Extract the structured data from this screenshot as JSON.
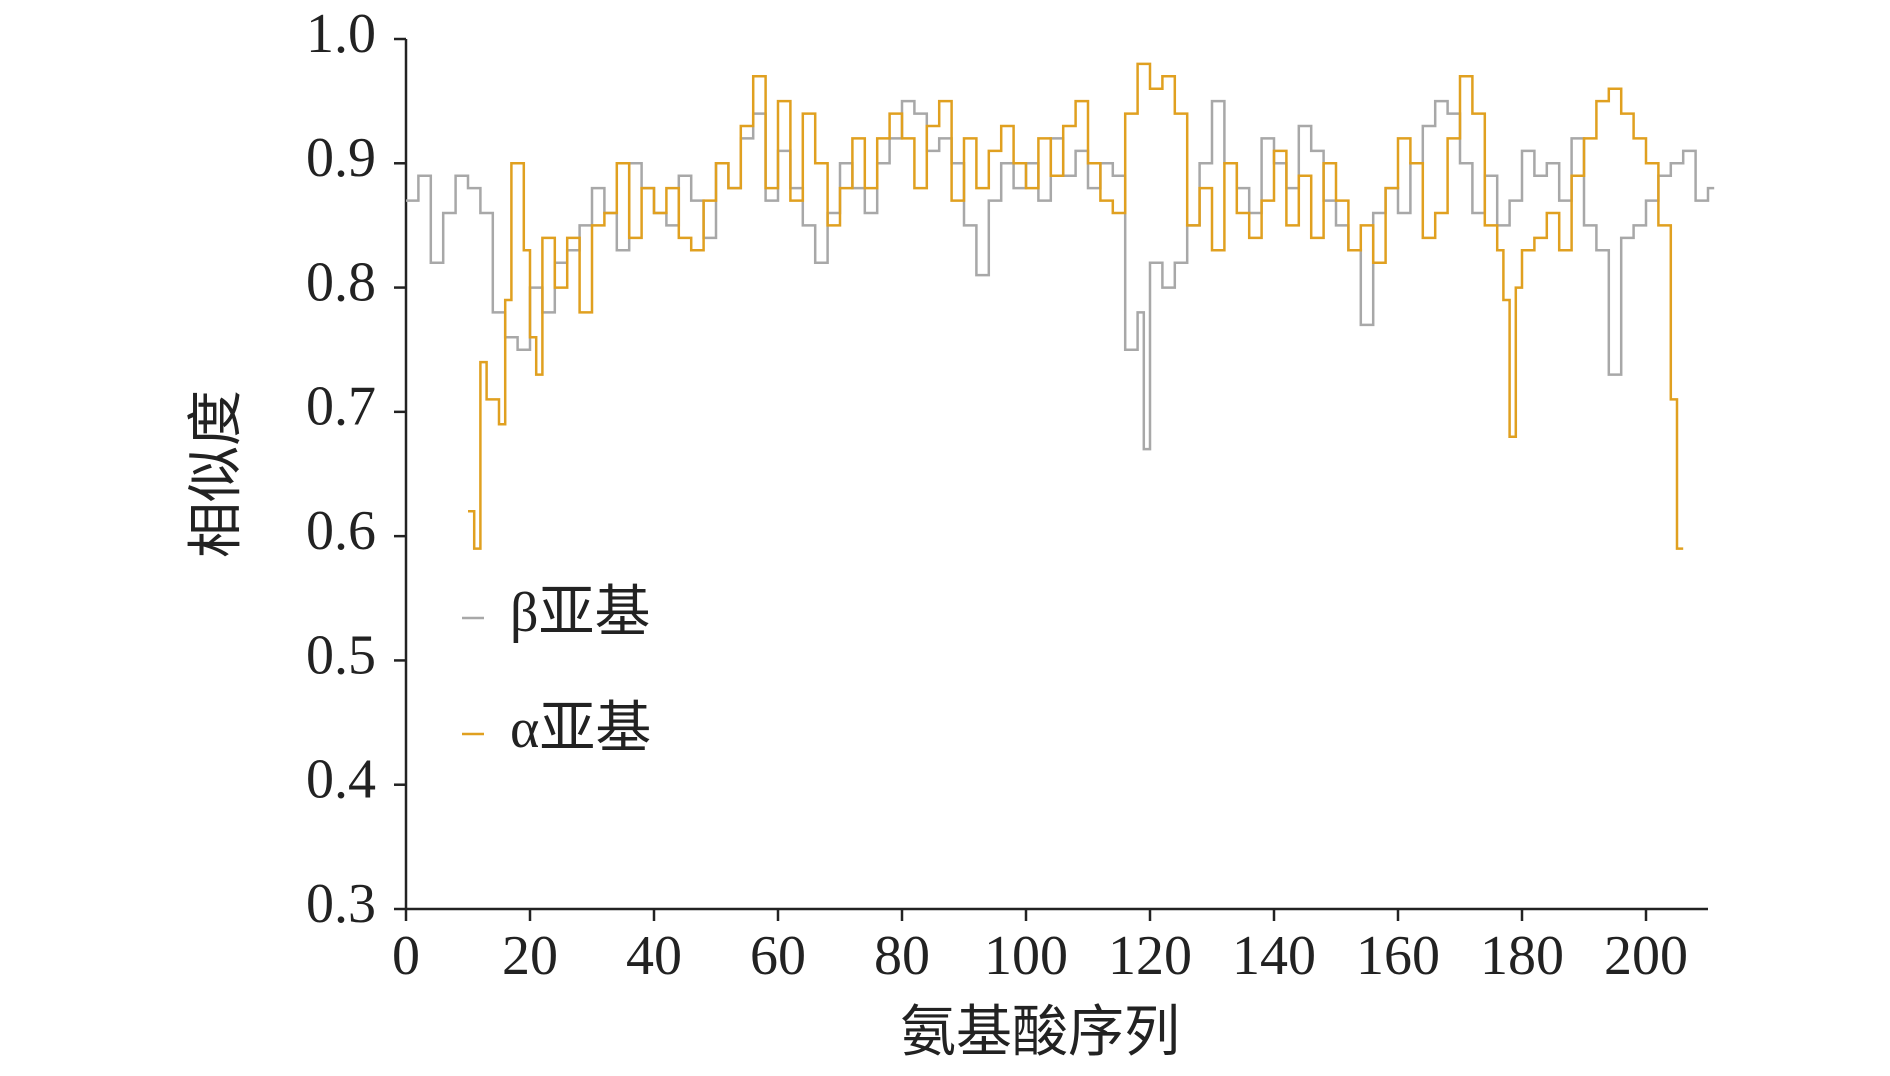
{
  "chart_data": {
    "type": "step",
    "xlabel": "氨基酸序列",
    "ylabel": "相似度",
    "xlim": [
      0,
      210
    ],
    "ylim": [
      0.3,
      1
    ],
    "xticks": [
      0,
      20,
      40,
      60,
      80,
      100,
      120,
      140,
      160,
      180,
      200
    ],
    "yticks": [
      0.3,
      0.4,
      0.5,
      0.6,
      0.7,
      0.8,
      0.9,
      {
        "value": 1,
        "label": "1.0"
      }
    ],
    "legend": "center-left",
    "series": [
      {
        "name": "β亚基",
        "color": "#a8a8a8",
        "x": [
          0,
          2,
          4,
          6,
          8,
          10,
          12,
          14,
          16,
          18,
          20,
          22,
          24,
          26,
          28,
          30,
          32,
          34,
          36,
          38,
          40,
          42,
          44,
          46,
          48,
          50,
          52,
          54,
          56,
          58,
          60,
          62,
          64,
          66,
          68,
          70,
          72,
          74,
          76,
          78,
          80,
          82,
          84,
          86,
          88,
          90,
          92,
          94,
          96,
          98,
          100,
          102,
          104,
          106,
          108,
          110,
          112,
          114,
          116,
          118,
          119,
          120,
          122,
          124,
          126,
          128,
          130,
          132,
          134,
          136,
          138,
          140,
          142,
          144,
          146,
          148,
          150,
          152,
          154,
          156,
          158,
          160,
          162,
          164,
          166,
          168,
          170,
          172,
          174,
          176,
          178,
          180,
          182,
          184,
          186,
          188,
          190,
          192,
          194,
          196,
          198,
          200,
          202,
          204,
          206,
          208,
          210
        ],
        "values": [
          0.87,
          0.89,
          0.82,
          0.86,
          0.89,
          0.88,
          0.86,
          0.78,
          0.76,
          0.75,
          0.8,
          0.78,
          0.82,
          0.83,
          0.85,
          0.88,
          0.86,
          0.83,
          0.9,
          0.88,
          0.86,
          0.85,
          0.89,
          0.87,
          0.84,
          0.9,
          0.88,
          0.92,
          0.94,
          0.87,
          0.91,
          0.88,
          0.85,
          0.82,
          0.86,
          0.9,
          0.88,
          0.86,
          0.9,
          0.92,
          0.95,
          0.94,
          0.91,
          0.92,
          0.9,
          0.85,
          0.81,
          0.87,
          0.9,
          0.88,
          0.9,
          0.87,
          0.92,
          0.89,
          0.91,
          0.88,
          0.9,
          0.89,
          0.75,
          0.78,
          0.67,
          0.82,
          0.8,
          0.82,
          0.85,
          0.9,
          0.95,
          0.9,
          0.88,
          0.86,
          0.92,
          0.9,
          0.88,
          0.93,
          0.91,
          0.87,
          0.85,
          0.83,
          0.77,
          0.86,
          0.88,
          0.86,
          0.9,
          0.93,
          0.95,
          0.94,
          0.9,
          0.86,
          0.89,
          0.85,
          0.87,
          0.91,
          0.89,
          0.9,
          0.87,
          0.92,
          0.85,
          0.83,
          0.73,
          0.84,
          0.85,
          0.87,
          0.89,
          0.9,
          0.91,
          0.87,
          0.88
        ]
      },
      {
        "name": "α亚基",
        "color": "#e0a020",
        "x": [
          10,
          11,
          12,
          13,
          15,
          16,
          17,
          19,
          20,
          21,
          22,
          24,
          26,
          28,
          30,
          32,
          34,
          36,
          38,
          40,
          42,
          44,
          46,
          48,
          50,
          52,
          54,
          56,
          58,
          60,
          62,
          64,
          66,
          68,
          70,
          72,
          74,
          76,
          78,
          80,
          82,
          84,
          86,
          88,
          90,
          92,
          94,
          96,
          98,
          100,
          102,
          104,
          106,
          108,
          110,
          112,
          114,
          116,
          118,
          120,
          122,
          124,
          126,
          128,
          130,
          132,
          134,
          136,
          138,
          140,
          142,
          144,
          146,
          148,
          150,
          152,
          154,
          156,
          158,
          160,
          162,
          164,
          166,
          168,
          170,
          172,
          174,
          176,
          177,
          178,
          179,
          180,
          182,
          184,
          186,
          188,
          190,
          192,
          194,
          196,
          198,
          200,
          202,
          204,
          205
        ],
        "values": [
          0.62,
          0.59,
          0.74,
          0.71,
          0.69,
          0.79,
          0.9,
          0.83,
          0.76,
          0.73,
          0.84,
          0.8,
          0.84,
          0.78,
          0.85,
          0.86,
          0.9,
          0.84,
          0.88,
          0.86,
          0.88,
          0.84,
          0.83,
          0.87,
          0.9,
          0.88,
          0.93,
          0.97,
          0.88,
          0.95,
          0.87,
          0.94,
          0.9,
          0.85,
          0.88,
          0.92,
          0.88,
          0.92,
          0.94,
          0.92,
          0.88,
          0.93,
          0.95,
          0.87,
          0.92,
          0.88,
          0.91,
          0.93,
          0.9,
          0.88,
          0.92,
          0.89,
          0.93,
          0.95,
          0.9,
          0.87,
          0.86,
          0.94,
          0.98,
          0.96,
          0.97,
          0.94,
          0.85,
          0.88,
          0.83,
          0.9,
          0.86,
          0.84,
          0.87,
          0.91,
          0.85,
          0.89,
          0.84,
          0.9,
          0.87,
          0.83,
          0.85,
          0.82,
          0.88,
          0.92,
          0.9,
          0.84,
          0.86,
          0.92,
          0.97,
          0.94,
          0.85,
          0.83,
          0.79,
          0.68,
          0.8,
          0.83,
          0.84,
          0.86,
          0.83,
          0.89,
          0.92,
          0.95,
          0.96,
          0.94,
          0.92,
          0.9,
          0.85,
          0.71,
          0.59
        ]
      }
    ]
  }
}
